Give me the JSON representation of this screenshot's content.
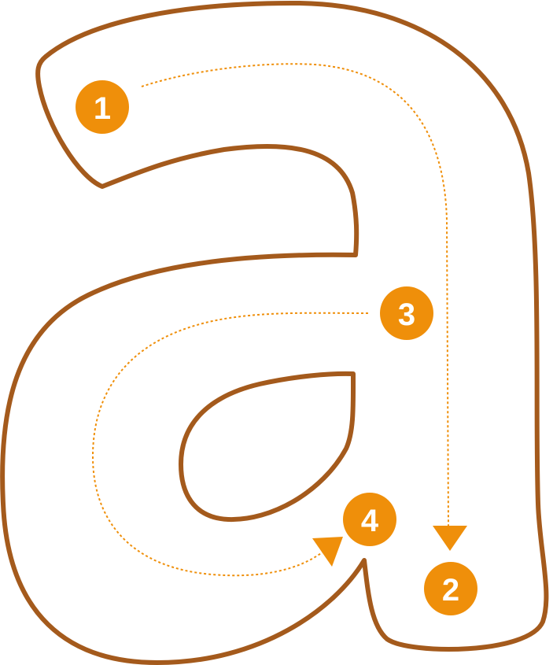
{
  "colors": {
    "outline": "#a45a1c",
    "guide": "#ef8f0a",
    "badge_text": "#ffffff",
    "background": "#ffffff"
  },
  "steps": [
    {
      "label": "1"
    },
    {
      "label": "2"
    },
    {
      "label": "3"
    },
    {
      "label": "4"
    }
  ]
}
